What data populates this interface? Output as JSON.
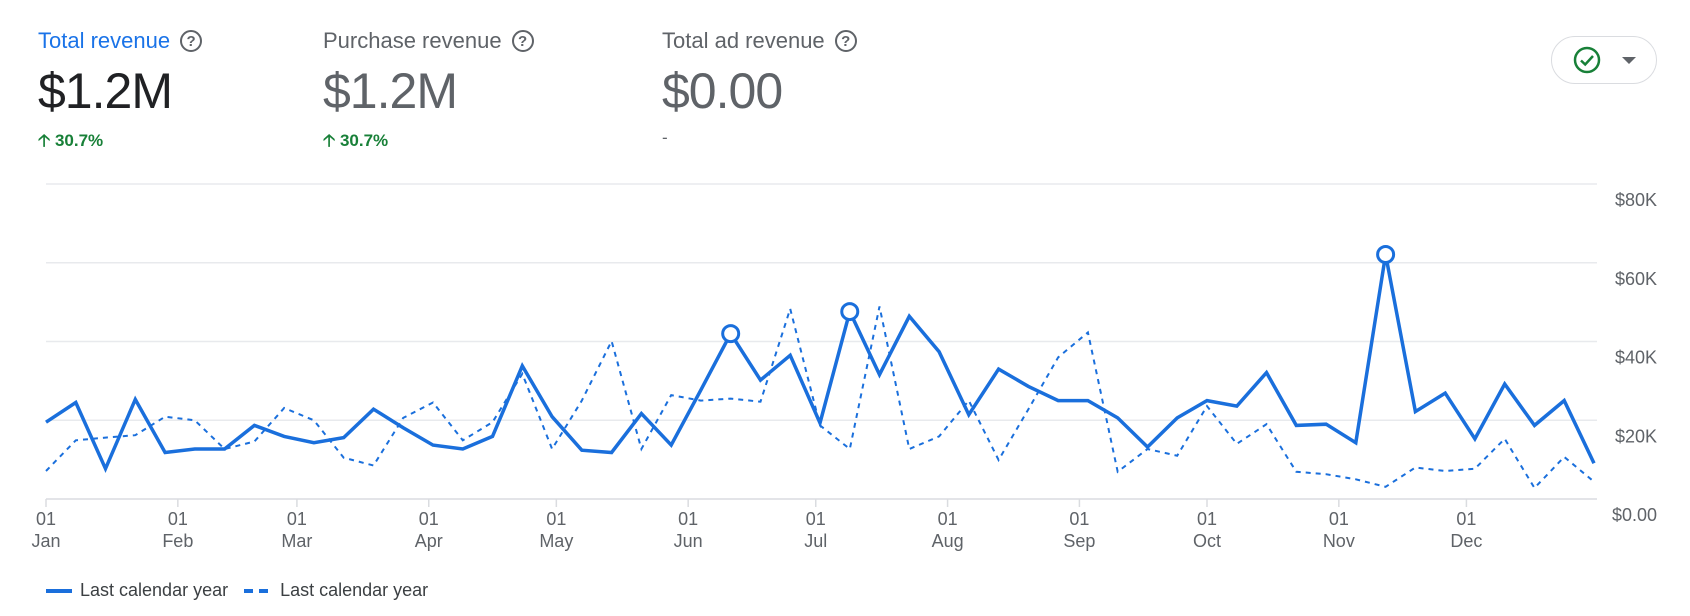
{
  "metrics": [
    {
      "title": "Total revenue",
      "value": "$1.2M",
      "change": "30.7%",
      "change_icon": "arrow-up-icon",
      "active": true
    },
    {
      "title": "Purchase revenue",
      "value": "$1.2M",
      "change": "30.7%",
      "change_icon": "arrow-up-icon",
      "active": false
    },
    {
      "title": "Total ad revenue",
      "value": "$0.00",
      "change": "-",
      "active": false
    }
  ],
  "help_glyph": "?",
  "status_button": {
    "icon": "check-circle-icon",
    "dropdown": "caret-down-icon"
  },
  "colors": {
    "accent": "#1a73e8",
    "line": "#1a6fdc",
    "positive": "#188038",
    "grid": "#e8eaed"
  },
  "chart_data": {
    "type": "line",
    "ylim": [
      0,
      80000
    ],
    "y_ticks": [
      "$0.00",
      "$20K",
      "$40K",
      "$60K",
      "$80K"
    ],
    "y_tick_values": [
      0,
      20000,
      40000,
      60000,
      80000
    ],
    "x_ticks": [
      {
        "day": "01",
        "month": "Jan",
        "doy": 0
      },
      {
        "day": "01",
        "month": "Feb",
        "doy": 31
      },
      {
        "day": "01",
        "month": "Mar",
        "doy": 59
      },
      {
        "day": "01",
        "month": "Apr",
        "doy": 90
      },
      {
        "day": "01",
        "month": "May",
        "doy": 120
      },
      {
        "day": "01",
        "month": "Jun",
        "doy": 151
      },
      {
        "day": "01",
        "month": "Jul",
        "doy": 181
      },
      {
        "day": "01",
        "month": "Aug",
        "doy": 212
      },
      {
        "day": "01",
        "month": "Sep",
        "doy": 243
      },
      {
        "day": "01",
        "month": "Oct",
        "doy": 273
      },
      {
        "day": "01",
        "month": "Nov",
        "doy": 304
      },
      {
        "day": "01",
        "month": "Dec",
        "doy": 334
      }
    ],
    "grid": true,
    "legend_placement": "bottom-left",
    "x_interval": "weekly",
    "series": [
      {
        "name": "Last calendar year",
        "style": "solid",
        "values": [
          19500,
          24500,
          7700,
          25300,
          11800,
          12700,
          12700,
          18700,
          15900,
          14300,
          15600,
          22800,
          18100,
          13700,
          12700,
          15900,
          33800,
          20900,
          12400,
          11800,
          21700,
          13700,
          27700,
          42000,
          30200,
          36500,
          19300,
          47600,
          31600,
          46400,
          37400,
          21400,
          33000,
          28600,
          25000,
          25000,
          20600,
          13200,
          20600,
          25000,
          23600,
          32100,
          18700,
          19000,
          14300,
          62100,
          22200,
          26900,
          15300,
          29200,
          18700,
          25000,
          9100
        ],
        "anomaly_indices": [
          23,
          27,
          45
        ]
      },
      {
        "name": "Last calendar year",
        "style": "dashed",
        "values": [
          7100,
          14900,
          15600,
          16200,
          20900,
          20000,
          12700,
          14600,
          23100,
          20000,
          10500,
          8500,
          20600,
          24500,
          14900,
          19500,
          31800,
          12700,
          25000,
          40100,
          12700,
          26400,
          25000,
          25500,
          24700,
          48300,
          18700,
          12700,
          48900,
          12700,
          15900,
          25000,
          9900,
          22800,
          36000,
          42300,
          6900,
          12700,
          11000,
          23600,
          14000,
          19000,
          6900,
          6300,
          5000,
          3100,
          8000,
          7100,
          7700,
          15300,
          2800,
          10700,
          4400
        ]
      }
    ]
  }
}
